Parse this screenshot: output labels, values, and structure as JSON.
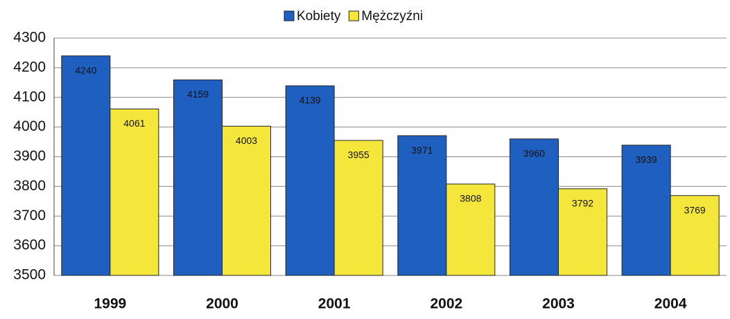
{
  "chart_data": {
    "type": "bar",
    "categories": [
      "1999",
      "2000",
      "2001",
      "2002",
      "2003",
      "2004"
    ],
    "series": [
      {
        "name": "Kobiety",
        "color": "#1f5fbf",
        "values": [
          4240,
          4159,
          4139,
          3971,
          3960,
          3939
        ]
      },
      {
        "name": "Mężczyźni",
        "color": "#f5e63c",
        "values": [
          4061,
          4003,
          3955,
          3808,
          3792,
          3769
        ]
      }
    ],
    "ylim": [
      3500,
      4300
    ],
    "yticks": [
      3500,
      3600,
      3700,
      3800,
      3900,
      4000,
      4100,
      4200,
      4300
    ],
    "grid": true,
    "legend": "top"
  }
}
